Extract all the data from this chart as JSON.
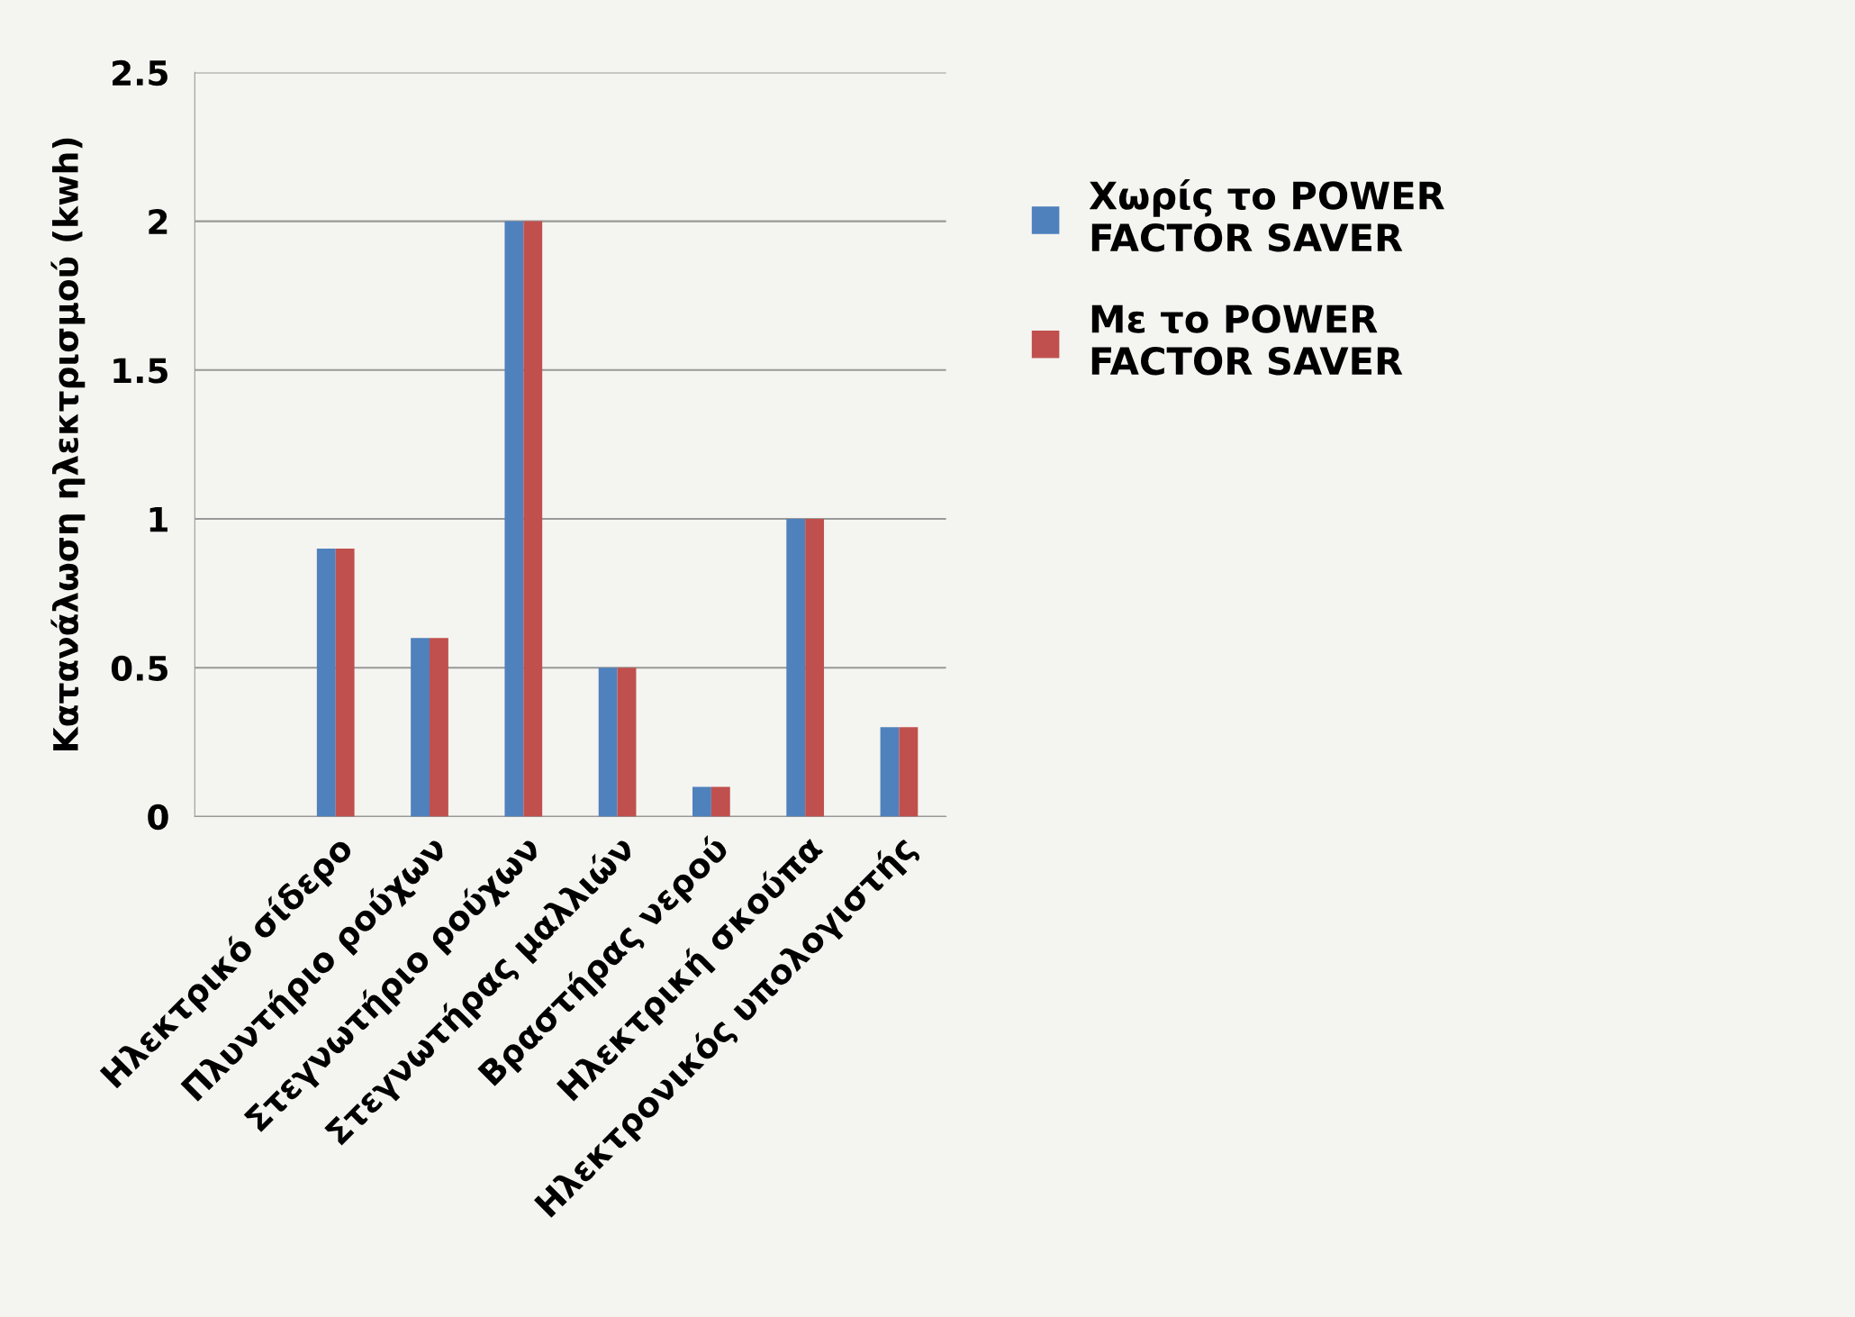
{
  "chart_data": {
    "type": "bar",
    "ylabel": "Κατανάλωση ηλεκτρισμού (kwh)",
    "categories": [
      null,
      "Ηλεκτρικό σίδερο",
      "Πλυντήριο ρούχων",
      "Στεγνωτήριο ρούχων",
      "Στεγνωτήρας μαλλιών",
      "Βραστήρας νερού",
      "Ηλεκτρική σκούπα",
      "Ηλεκτρονικός υπολογιστής"
    ],
    "series": [
      {
        "name": "Χωρίς το POWER FACTOR SAVER",
        "color": "#4f81bd",
        "values": [
          null,
          0.9,
          0.6,
          2,
          0.5,
          0.1,
          1,
          0.3
        ]
      },
      {
        "name": "Με το POWER FACTOR SAVER",
        "color": "#c0504d",
        "values": [
          null,
          0.9,
          0.6,
          2,
          0.5,
          0.1,
          1,
          0.3
        ]
      }
    ],
    "ylim": [
      0,
      2.5
    ],
    "yticks": [
      0,
      0.5,
      1,
      1.5,
      2,
      2.5
    ],
    "grid": "y",
    "legend": "right"
  }
}
